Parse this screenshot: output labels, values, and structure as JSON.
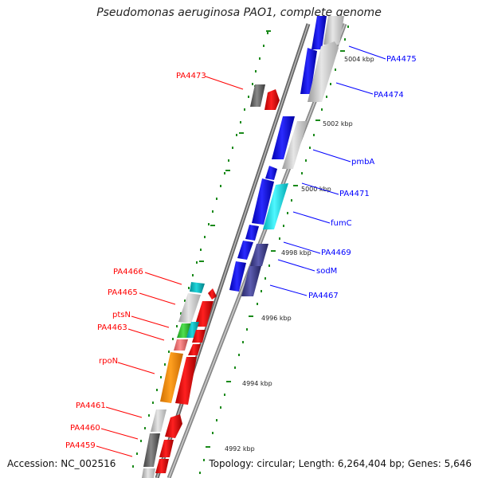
{
  "title": "Pseudomonas aeruginosa PAO1, complete genome",
  "accession_text": "Accession: NC_002516",
  "summary_text": "Topology: circular; Length: 6,264,404 bp; Genes: 5,646",
  "colors": {
    "left_strand": "#ff0000",
    "right_strand": "#0000ff",
    "tick": "#008000",
    "backbone": "#777777"
  },
  "scale_labels": [
    "5004 kbp",
    "5002 kbp",
    "5000 kbp",
    "4998 kbp",
    "4996 kbp",
    "4994 kbp",
    "4992 kbp"
  ],
  "left_labels": [
    "PA4473",
    "PA4466",
    "PA4465",
    "ptsN",
    "PA4463",
    "rpoN",
    "PA4461",
    "PA4460",
    "PA4459"
  ],
  "right_labels": [
    "PA4475",
    "PA4474",
    "pmbA",
    "PA4471",
    "fumC",
    "PA4469",
    "sodM",
    "PA4467"
  ]
}
